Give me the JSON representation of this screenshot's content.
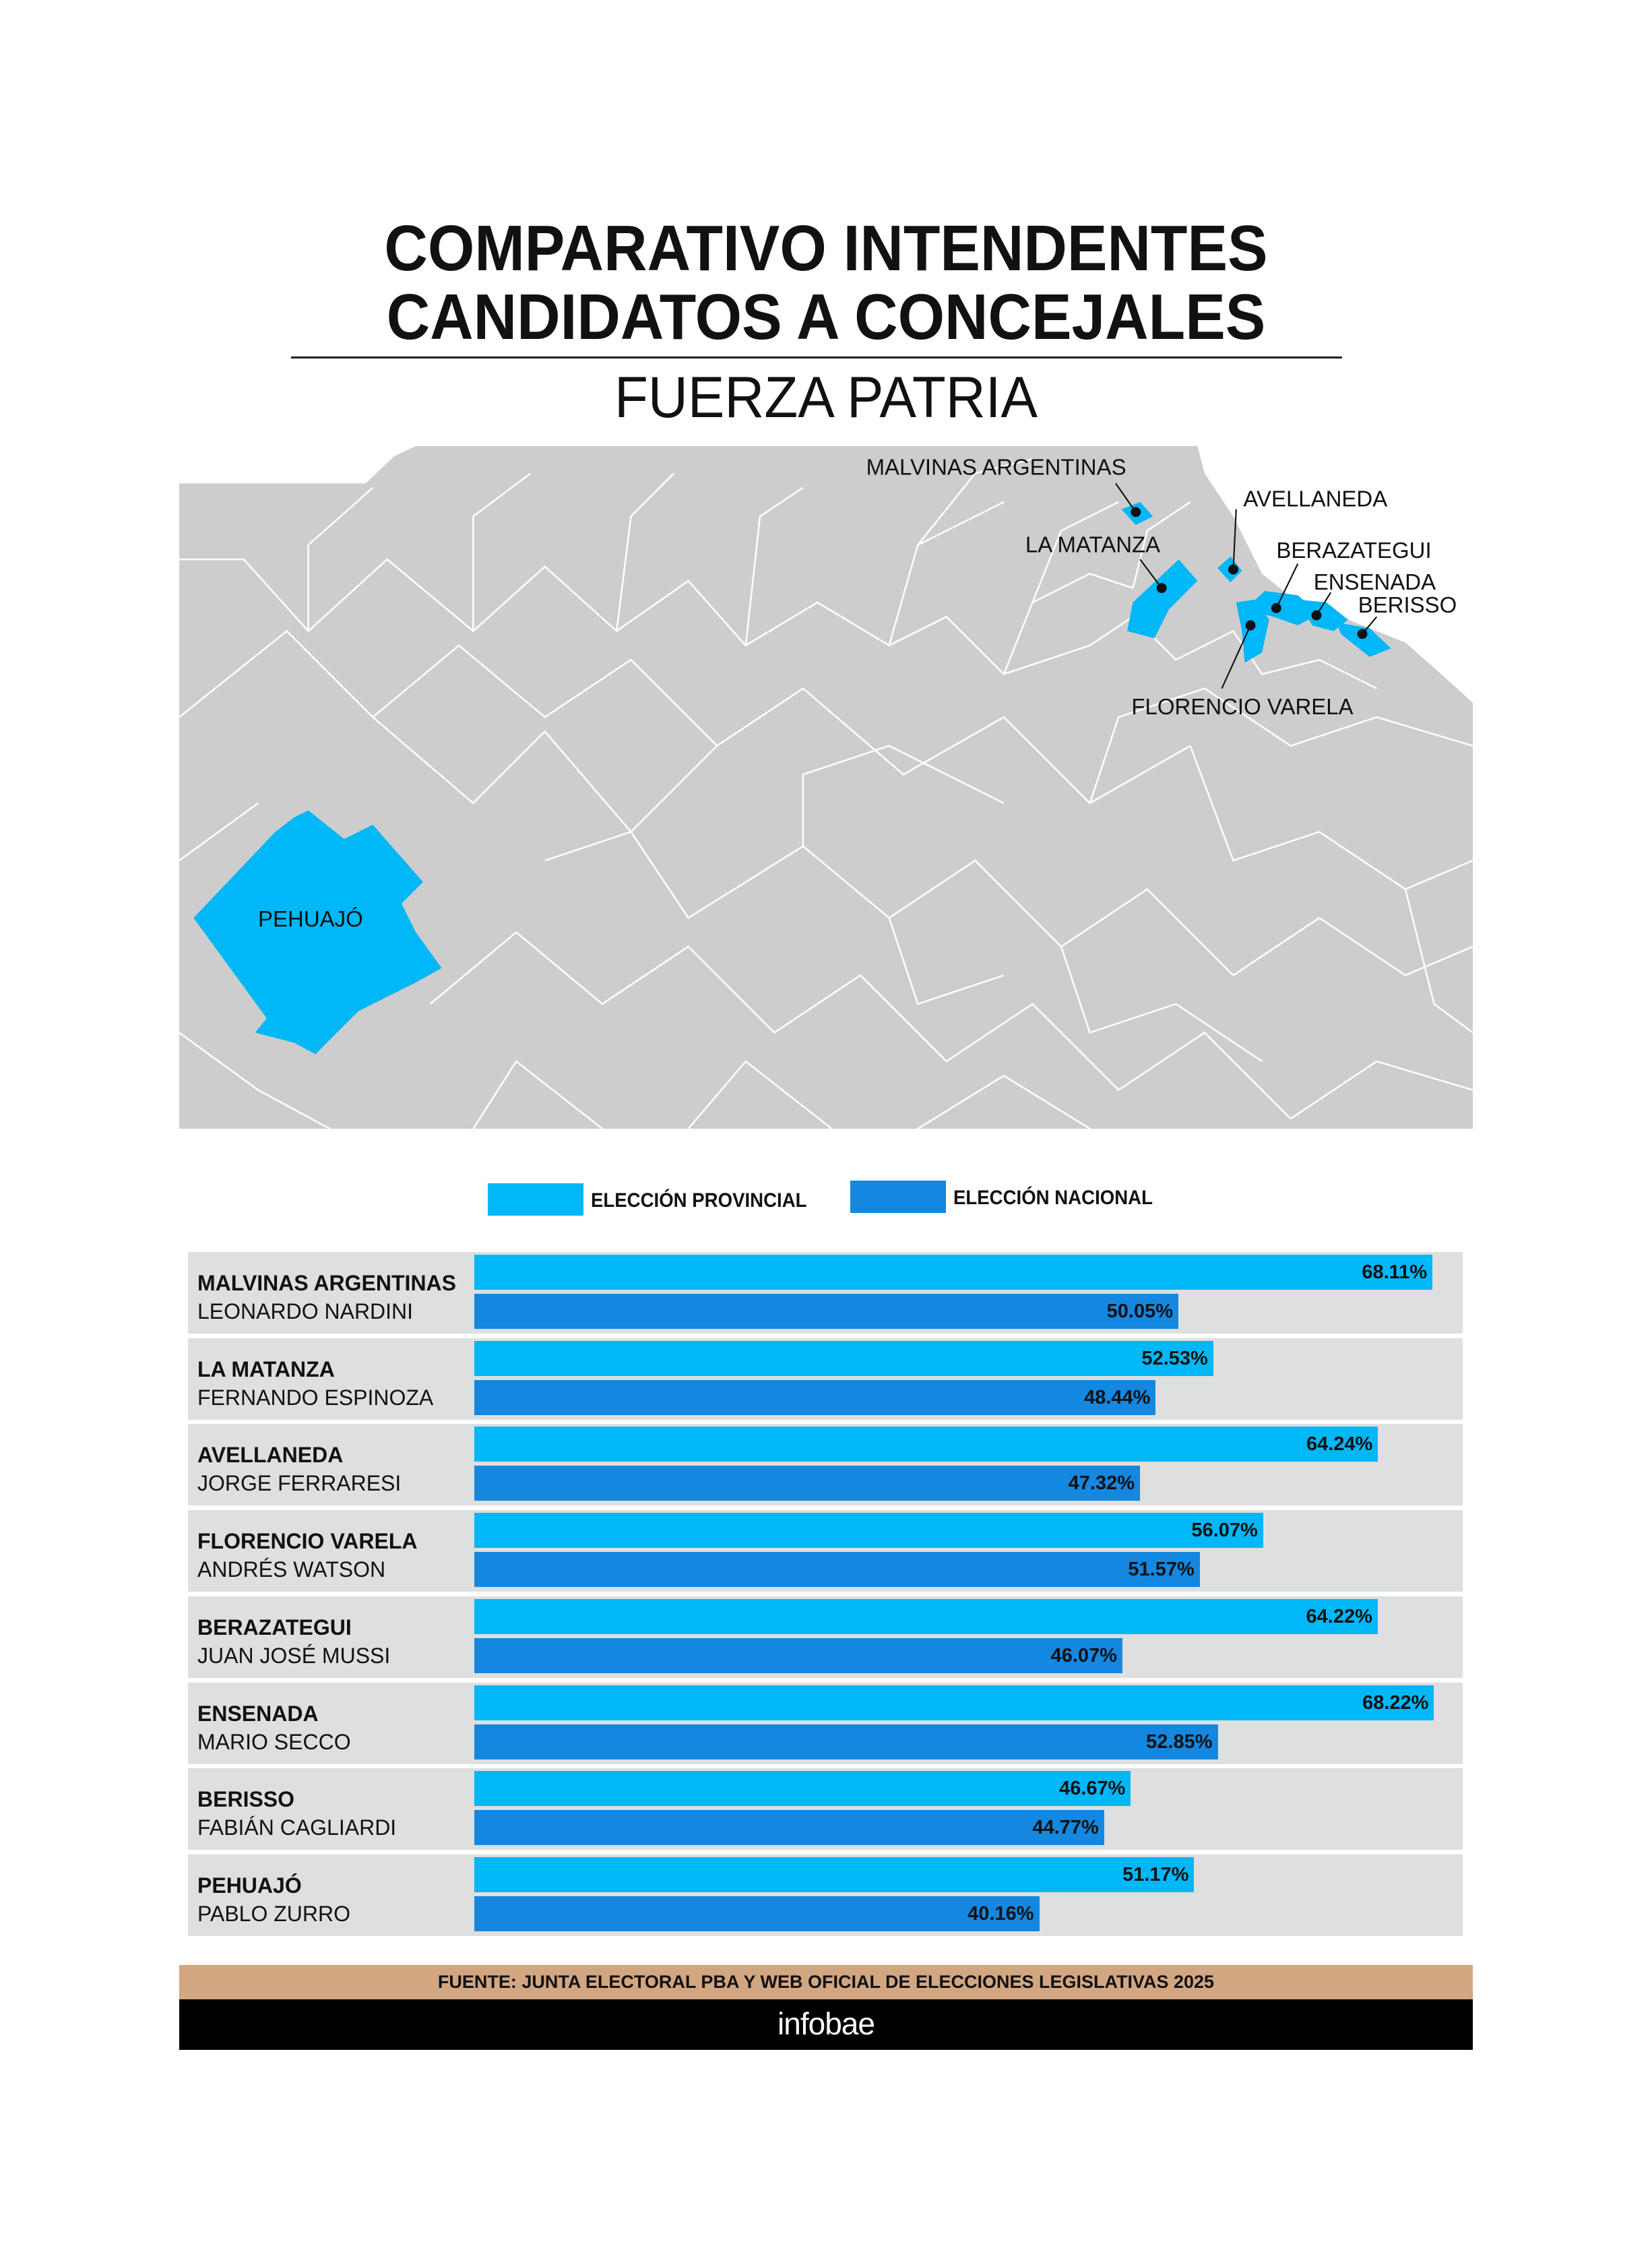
{
  "title_lines": [
    "COMPARATIVO INTENDENTES",
    "CANDIDATOS A CONCEJALES"
  ],
  "subtitle": "FUERZA PATRIA",
  "map": {
    "labels": {
      "malvinas": "MALVINAS ARGENTINAS",
      "matanza": "LA MATANZA",
      "avellaneda": "AVELLANEDA",
      "berazategui": "BERAZATEGUI",
      "ensenada": "ENSENADA",
      "berisso": "BERISSO",
      "varela": "FLORENCIO VARELA",
      "pehuajo": "PEHUAJÓ"
    },
    "colors": {
      "highlight": "#00b7f7",
      "base": "#cdcdcd",
      "border": "#ffffff"
    }
  },
  "chart_data": {
    "type": "bar",
    "orientation": "horizontal",
    "categories": [
      "MALVINAS ARGENTINAS",
      "LA MATANZA",
      "AVELLANEDA",
      "FLORENCIO VARELA",
      "BERAZATEGUI",
      "ENSENADA",
      "BERISSO",
      "PEHUAJÓ"
    ],
    "candidates": [
      "LEONARDO NARDINI",
      "FERNANDO ESPINOZA",
      "JORGE FERRARESI",
      "ANDRÉS WATSON",
      "JUAN JOSÉ MUSSI",
      "MARIO SECCO",
      "FABIÁN CAGLIARDI",
      "PABLO ZURRO"
    ],
    "series": [
      {
        "name": "ELECCIÓN PROVINCIAL",
        "color": "#00b7f7",
        "values": [
          68.11,
          52.53,
          64.24,
          56.07,
          64.22,
          68.22,
          46.67,
          51.17
        ]
      },
      {
        "name": "ELECCIÓN NACIONAL",
        "color": "#1487e0",
        "values": [
          50.05,
          48.44,
          47.32,
          51.57,
          46.07,
          52.85,
          44.77,
          40.16
        ]
      }
    ],
    "value_suffix": "%",
    "legend": "top",
    "grid": false
  },
  "footer": {
    "source": "FUENTE: JUNTA ELECTORAL PBA Y WEB OFICIAL DE ELECCIONES LEGISLATIVAS 2025",
    "brand": "infobae"
  }
}
